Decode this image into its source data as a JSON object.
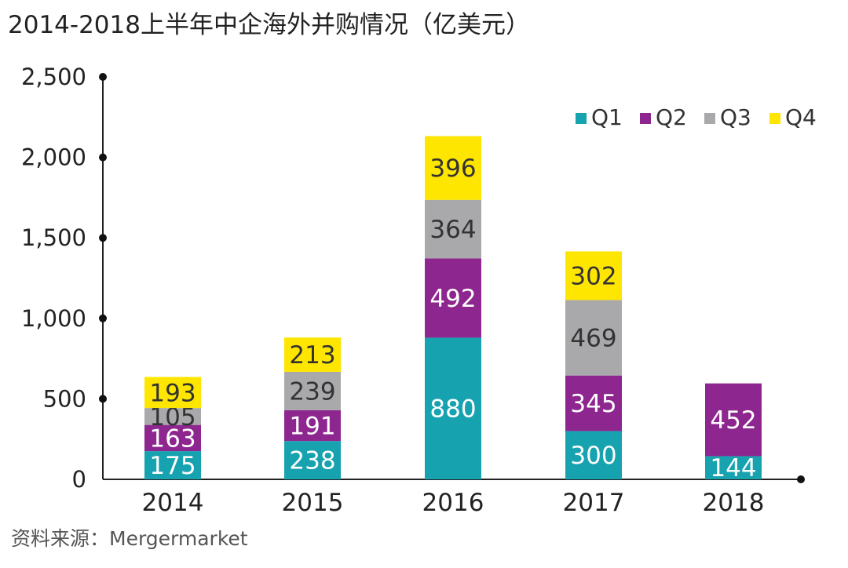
{
  "title": "2014-2018上半年中企海外并购情况（亿美元）",
  "source": "资料来源：Mergermarket",
  "chart_data": {
    "type": "bar",
    "stacked": true,
    "title": "2014-2018上半年中企海外并购情况（亿美元）",
    "xlabel": "",
    "ylabel": "",
    "categories": [
      "2014",
      "2015",
      "2016",
      "2017",
      "2018"
    ],
    "ylim": [
      0,
      2500
    ],
    "yticks": [
      0,
      500,
      1000,
      1500,
      2000,
      2500
    ],
    "ytick_labels": [
      "0",
      "500",
      "1,000",
      "1,500",
      "2,000",
      "2,500"
    ],
    "grid": false,
    "legend_position": "top-right",
    "series": [
      {
        "name": "Q1",
        "color": "#17A2B0",
        "label_color": "#ffffff",
        "values": [
          175,
          238,
          880,
          300,
          144
        ]
      },
      {
        "name": "Q2",
        "color": "#8E268F",
        "label_color": "#ffffff",
        "values": [
          163,
          191,
          492,
          345,
          452
        ]
      },
      {
        "name": "Q3",
        "color": "#A9A9AC",
        "label_color": "#333333",
        "values": [
          105,
          239,
          364,
          469,
          null
        ]
      },
      {
        "name": "Q4",
        "color": "#FFE600",
        "label_color": "#333333",
        "values": [
          193,
          213,
          396,
          302,
          null
        ]
      }
    ]
  }
}
